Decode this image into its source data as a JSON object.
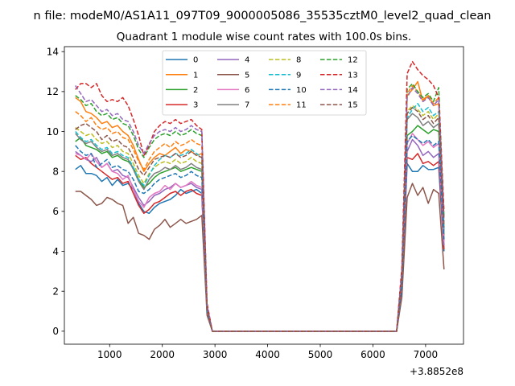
{
  "chart_data": {
    "type": "line",
    "suptitle": "n file: modeM0/AS1A11_097T09_9000005086_35535cztM0_level2_quad_clean",
    "title": "Quadrant 1 module wise count rates with 100.0s bins.",
    "xlabel": "",
    "ylabel": "",
    "offset_label": "+3.8852e8",
    "xlim": [
      140,
      7720
    ],
    "ylim": [
      -0.65,
      14.25
    ],
    "xticks": [
      1000,
      2000,
      3000,
      4000,
      5000,
      6000,
      7000
    ],
    "yticks": [
      0,
      2,
      4,
      6,
      8,
      10,
      12,
      14
    ],
    "legend": {
      "placement": "upper center",
      "ncol": 4
    },
    "grid": false,
    "x": [
      350,
      450,
      550,
      650,
      750,
      850,
      950,
      1050,
      1150,
      1250,
      1350,
      1450,
      1550,
      1650,
      1750,
      1850,
      1950,
      2050,
      2150,
      2250,
      2350,
      2450,
      2550,
      2650,
      2750,
      2850,
      2950,
      3050,
      3150,
      3250,
      3350,
      3450,
      3550,
      3650,
      3750,
      3850,
      3950,
      4050,
      4150,
      4250,
      4350,
      4450,
      4550,
      4650,
      4750,
      4850,
      4950,
      5050,
      5150,
      5250,
      5350,
      5450,
      5550,
      5650,
      5750,
      5850,
      5950,
      6050,
      6150,
      6250,
      6350,
      6450,
      6550,
      6650,
      6750,
      6850,
      6950,
      7050,
      7150,
      7250,
      7350
    ],
    "series": [
      {
        "name": "0",
        "color": "#1f77b4",
        "dash": "solid",
        "values": [
          8.1,
          8.3,
          7.9,
          7.9,
          7.8,
          7.5,
          7.7,
          7.3,
          7.6,
          7.3,
          7.4,
          7.1,
          6.4,
          6.0,
          5.9,
          6.2,
          6.4,
          6.5,
          6.6,
          6.8,
          7.1,
          6.9,
          7.0,
          7.1,
          6.9,
          1.0,
          0,
          0,
          0,
          0,
          0,
          0,
          0,
          0,
          0,
          0,
          0,
          0,
          0,
          0,
          0,
          0,
          0,
          0,
          0,
          0,
          0,
          0,
          0,
          0,
          0,
          0,
          0,
          0,
          0,
          0,
          0,
          0,
          0,
          0,
          0,
          0,
          2.0,
          8.4,
          8.0,
          8.0,
          8.3,
          8.1,
          8.1,
          8.2,
          4.0
        ]
      },
      {
        "name": "1",
        "color": "#ff7f0e",
        "dash": "solid",
        "values": [
          11.7,
          11.5,
          11.0,
          10.9,
          10.7,
          10.4,
          10.5,
          10.2,
          10.3,
          10.0,
          9.8,
          9.3,
          8.6,
          8.0,
          8.4,
          8.7,
          8.9,
          8.8,
          9.0,
          9.2,
          8.9,
          9.1,
          9.0,
          8.8,
          8.9,
          1.1,
          0,
          0,
          0,
          0,
          0,
          0,
          0,
          0,
          0,
          0,
          0,
          0,
          0,
          0,
          0,
          0,
          0,
          0,
          0,
          0,
          0,
          0,
          0,
          0,
          0,
          0,
          0,
          0,
          0,
          0,
          0,
          0,
          0,
          0,
          0,
          0,
          2.8,
          11.8,
          12.1,
          12.5,
          11.5,
          11.8,
          11.3,
          11.4,
          5.2
        ]
      },
      {
        "name": "2",
        "color": "#2ca02c",
        "dash": "solid",
        "values": [
          9.5,
          9.7,
          9.3,
          9.2,
          9.1,
          8.9,
          9.0,
          8.7,
          8.8,
          8.6,
          8.5,
          8.2,
          7.6,
          7.2,
          7.4,
          7.7,
          7.9,
          8.0,
          8.1,
          8.2,
          8.0,
          8.1,
          8.2,
          8.1,
          8.0,
          1.0,
          0,
          0,
          0,
          0,
          0,
          0,
          0,
          0,
          0,
          0,
          0,
          0,
          0,
          0,
          0,
          0,
          0,
          0,
          0,
          0,
          0,
          0,
          0,
          0,
          0,
          0,
          0,
          0,
          0,
          0,
          0,
          0,
          0,
          0,
          0,
          0,
          2.4,
          9.8,
          10.0,
          10.3,
          10.1,
          9.9,
          10.1,
          10.0,
          4.8
        ]
      },
      {
        "name": "3",
        "color": "#d62728",
        "dash": "solid",
        "values": [
          8.8,
          8.6,
          8.7,
          8.4,
          8.2,
          8.0,
          7.8,
          7.6,
          7.7,
          7.4,
          7.5,
          6.9,
          6.3,
          5.9,
          6.1,
          6.4,
          6.5,
          6.7,
          6.9,
          7.0,
          6.8,
          7.0,
          7.1,
          6.9,
          6.8,
          1.0,
          0,
          0,
          0,
          0,
          0,
          0,
          0,
          0,
          0,
          0,
          0,
          0,
          0,
          0,
          0,
          0,
          0,
          0,
          0,
          0,
          0,
          0,
          0,
          0,
          0,
          0,
          0,
          0,
          0,
          0,
          0,
          0,
          0,
          0,
          0,
          0,
          2.1,
          8.7,
          8.6,
          8.9,
          8.4,
          8.5,
          8.3,
          8.5,
          4.1
        ]
      },
      {
        "name": "4",
        "color": "#9467bd",
        "dash": "solid",
        "values": [
          9.0,
          8.8,
          8.6,
          8.5,
          8.7,
          8.2,
          8.4,
          8.0,
          8.1,
          7.8,
          7.7,
          7.2,
          6.7,
          6.3,
          6.5,
          6.8,
          6.9,
          7.1,
          7.2,
          7.4,
          7.2,
          7.3,
          7.4,
          7.2,
          7.1,
          1.0,
          0,
          0,
          0,
          0,
          0,
          0,
          0,
          0,
          0,
          0,
          0,
          0,
          0,
          0,
          0,
          0,
          0,
          0,
          0,
          0,
          0,
          0,
          0,
          0,
          0,
          0,
          0,
          0,
          0,
          0,
          0,
          0,
          0,
          0,
          0,
          0,
          2.2,
          9.0,
          9.6,
          9.3,
          8.8,
          9.0,
          8.7,
          8.9,
          4.3
        ]
      },
      {
        "name": "5",
        "color": "#8c564b",
        "dash": "solid",
        "values": [
          7.0,
          7.0,
          6.8,
          6.6,
          6.3,
          6.4,
          6.7,
          6.6,
          6.4,
          6.3,
          5.4,
          5.7,
          4.9,
          4.8,
          4.6,
          5.1,
          5.3,
          5.6,
          5.2,
          5.4,
          5.6,
          5.4,
          5.5,
          5.6,
          5.8,
          0.8,
          0,
          0,
          0,
          0,
          0,
          0,
          0,
          0,
          0,
          0,
          0,
          0,
          0,
          0,
          0,
          0,
          0,
          0,
          0,
          0,
          0,
          0,
          0,
          0,
          0,
          0,
          0,
          0,
          0,
          0,
          0,
          0,
          0,
          0,
          0,
          0,
          1.7,
          6.7,
          7.4,
          6.8,
          7.2,
          6.4,
          7.1,
          6.9,
          3.1
        ]
      },
      {
        "name": "6",
        "color": "#e377c2",
        "dash": "solid",
        "values": [
          8.9,
          8.8,
          8.6,
          8.9,
          8.5,
          8.2,
          8.4,
          8.0,
          7.9,
          7.6,
          7.8,
          7.1,
          6.5,
          6.2,
          6.7,
          6.9,
          7.0,
          7.3,
          7.1,
          7.4,
          7.2,
          7.3,
          7.5,
          7.3,
          7.2,
          1.0,
          0,
          0,
          0,
          0,
          0,
          0,
          0,
          0,
          0,
          0,
          0,
          0,
          0,
          0,
          0,
          0,
          0,
          0,
          0,
          0,
          0,
          0,
          0,
          0,
          0,
          0,
          0,
          0,
          0,
          0,
          0,
          0,
          0,
          0,
          0,
          0,
          2.3,
          9.4,
          9.9,
          9.6,
          9.3,
          9.5,
          9.2,
          9.4,
          4.5
        ]
      },
      {
        "name": "7",
        "color": "#7f7f7f",
        "dash": "solid",
        "values": [
          9.9,
          9.6,
          9.4,
          9.5,
          9.2,
          9.0,
          9.1,
          8.8,
          8.9,
          8.7,
          8.6,
          8.1,
          7.5,
          7.1,
          7.6,
          7.9,
          8.0,
          8.2,
          8.1,
          8.3,
          8.1,
          8.2,
          8.4,
          8.2,
          8.1,
          1.1,
          0,
          0,
          0,
          0,
          0,
          0,
          0,
          0,
          0,
          0,
          0,
          0,
          0,
          0,
          0,
          0,
          0,
          0,
          0,
          0,
          0,
          0,
          0,
          0,
          0,
          0,
          0,
          0,
          0,
          0,
          0,
          0,
          0,
          0,
          0,
          0,
          2.5,
          10.6,
          10.9,
          10.7,
          10.3,
          10.5,
          10.2,
          10.4,
          5.0
        ]
      },
      {
        "name": "8",
        "color": "#bcbd22",
        "dash": "dashed",
        "values": [
          10.2,
          10.0,
          9.8,
          9.9,
          9.6,
          9.4,
          9.5,
          9.2,
          9.3,
          9.0,
          8.9,
          8.4,
          7.8,
          7.4,
          7.9,
          8.2,
          8.4,
          8.5,
          8.4,
          8.6,
          8.4,
          8.5,
          8.7,
          8.5,
          8.4,
          1.1,
          0,
          0,
          0,
          0,
          0,
          0,
          0,
          0,
          0,
          0,
          0,
          0,
          0,
          0,
          0,
          0,
          0,
          0,
          0,
          0,
          0,
          0,
          0,
          0,
          0,
          0,
          0,
          0,
          0,
          0,
          0,
          0,
          0,
          0,
          0,
          0,
          2.6,
          11.0,
          11.3,
          11.1,
          10.8,
          11.0,
          10.6,
          10.9,
          5.2
        ]
      },
      {
        "name": "9",
        "color": "#17becf",
        "dash": "dashed",
        "values": [
          10.0,
          9.7,
          9.5,
          9.6,
          9.3,
          9.1,
          9.2,
          8.9,
          9.0,
          8.8,
          8.7,
          8.2,
          7.6,
          7.3,
          7.8,
          8.3,
          8.6,
          8.8,
          8.7,
          8.9,
          8.8,
          8.9,
          9.1,
          8.9,
          8.7,
          1.1,
          0,
          0,
          0,
          0,
          0,
          0,
          0,
          0,
          0,
          0,
          0,
          0,
          0,
          0,
          0,
          0,
          0,
          0,
          0,
          0,
          0,
          0,
          0,
          0,
          0,
          0,
          0,
          0,
          0,
          0,
          0,
          0,
          0,
          0,
          0,
          0,
          2.5,
          10.7,
          11.1,
          11.4,
          11.0,
          11.2,
          10.8,
          11.0,
          5.1
        ]
      },
      {
        "name": "10",
        "color": "#1f77b4",
        "dash": "dashed",
        "values": [
          9.3,
          9.0,
          8.8,
          8.9,
          8.2,
          8.4,
          8.6,
          8.2,
          8.3,
          8.1,
          8.0,
          7.6,
          7.0,
          6.9,
          7.1,
          7.4,
          7.6,
          7.7,
          7.8,
          7.9,
          7.7,
          7.8,
          8.0,
          7.8,
          7.7,
          1.0,
          0,
          0,
          0,
          0,
          0,
          0,
          0,
          0,
          0,
          0,
          0,
          0,
          0,
          0,
          0,
          0,
          0,
          0,
          0,
          0,
          0,
          0,
          0,
          0,
          0,
          0,
          0,
          0,
          0,
          0,
          0,
          0,
          0,
          0,
          0,
          0,
          2.2,
          9.5,
          9.8,
          9.6,
          9.4,
          9.6,
          9.3,
          9.5,
          4.6
        ]
      },
      {
        "name": "11",
        "color": "#ff7f0e",
        "dash": "dashed",
        "values": [
          11.0,
          10.8,
          10.5,
          10.7,
          10.3,
          10.1,
          10.2,
          9.9,
          10.0,
          9.7,
          9.6,
          9.1,
          8.5,
          8.1,
          8.6,
          9.0,
          9.2,
          9.4,
          9.2,
          9.5,
          9.3,
          9.4,
          9.6,
          9.4,
          9.3,
          1.2,
          0,
          0,
          0,
          0,
          0,
          0,
          0,
          0,
          0,
          0,
          0,
          0,
          0,
          0,
          0,
          0,
          0,
          0,
          0,
          0,
          0,
          0,
          0,
          0,
          0,
          0,
          0,
          0,
          0,
          0,
          0,
          0,
          0,
          0,
          0,
          0,
          2.8,
          11.9,
          12.3,
          12.0,
          11.6,
          11.8,
          11.4,
          11.7,
          5.6
        ]
      },
      {
        "name": "12",
        "color": "#2ca02c",
        "dash": "dashed",
        "values": [
          11.8,
          11.6,
          11.3,
          11.4,
          11.0,
          10.8,
          10.9,
          10.6,
          10.7,
          10.4,
          10.3,
          9.8,
          9.1,
          8.7,
          9.2,
          9.6,
          9.8,
          9.9,
          9.8,
          10.0,
          9.8,
          9.9,
          10.1,
          9.9,
          9.8,
          1.2,
          0,
          0,
          0,
          0,
          0,
          0,
          0,
          0,
          0,
          0,
          0,
          0,
          0,
          0,
          0,
          0,
          0,
          0,
          0,
          0,
          0,
          0,
          0,
          0,
          0,
          0,
          0,
          0,
          0,
          0,
          0,
          0,
          0,
          0,
          0,
          0,
          2.9,
          12.1,
          12.4,
          12.0,
          11.7,
          11.9,
          11.5,
          12.2,
          5.7
        ]
      },
      {
        "name": "13",
        "color": "#d62728",
        "dash": "dashed",
        "values": [
          12.1,
          12.4,
          12.4,
          12.2,
          12.4,
          11.8,
          11.5,
          11.6,
          11.5,
          11.7,
          11.3,
          10.6,
          9.8,
          8.8,
          9.3,
          10.0,
          10.3,
          10.5,
          10.4,
          10.6,
          10.4,
          10.5,
          10.6,
          10.3,
          10.1,
          1.4,
          0,
          0,
          0,
          0,
          0,
          0,
          0,
          0,
          0,
          0,
          0,
          0,
          0,
          0,
          0,
          0,
          0,
          0,
          0,
          0,
          0,
          0,
          0,
          0,
          0,
          0,
          0,
          0,
          0,
          0,
          0,
          0,
          0,
          0,
          0,
          0,
          3.2,
          12.9,
          13.5,
          13.1,
          12.8,
          12.6,
          12.3,
          11.7,
          6.0
        ]
      },
      {
        "name": "14",
        "color": "#9467bd",
        "dash": "dashed",
        "values": [
          12.3,
          11.9,
          11.5,
          11.6,
          11.3,
          11.0,
          11.1,
          10.8,
          10.9,
          10.6,
          10.5,
          10.0,
          9.3,
          8.9,
          9.4,
          9.8,
          10.0,
          10.1,
          10.0,
          10.2,
          10.0,
          10.1,
          10.3,
          10.1,
          10.0,
          1.3,
          0,
          0,
          0,
          0,
          0,
          0,
          0,
          0,
          0,
          0,
          0,
          0,
          0,
          0,
          0,
          0,
          0,
          0,
          0,
          0,
          0,
          0,
          0,
          0,
          0,
          0,
          0,
          0,
          0,
          0,
          0,
          0,
          0,
          0,
          0,
          0,
          3.0,
          11.7,
          12.2,
          11.9,
          11.5,
          11.7,
          11.3,
          11.6,
          5.5
        ]
      },
      {
        "name": "15",
        "color": "#8c564b",
        "dash": "dashed",
        "values": [
          10.1,
          10.3,
          10.4,
          10.2,
          10.0,
          9.6,
          9.8,
          9.5,
          9.6,
          9.3,
          9.2,
          8.7,
          8.1,
          7.8,
          8.2,
          8.6,
          8.7,
          8.8,
          8.7,
          8.9,
          8.7,
          8.8,
          9.0,
          8.8,
          8.7,
          1.1,
          0,
          0,
          0,
          0,
          0,
          0,
          0,
          0,
          0,
          0,
          0,
          0,
          0,
          0,
          0,
          0,
          0,
          0,
          0,
          0,
          0,
          0,
          0,
          0,
          0,
          0,
          0,
          0,
          0,
          0,
          0,
          0,
          0,
          0,
          0,
          0,
          2.6,
          10.9,
          11.2,
          11.0,
          10.6,
          10.8,
          10.4,
          10.7,
          5.2
        ]
      }
    ]
  }
}
